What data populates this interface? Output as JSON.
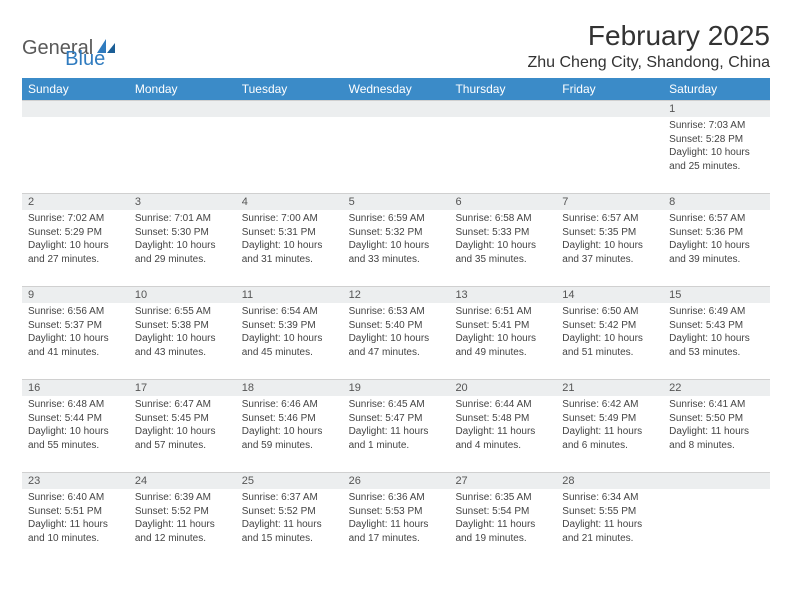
{
  "brand": {
    "part1": "General",
    "part2": "Blue"
  },
  "title": "February 2025",
  "location": "Zhu Cheng City, Shandong, China",
  "colors": {
    "header_bg": "#3b8bc8",
    "header_text": "#ffffff",
    "daybar_bg": "#eceeef",
    "daybar_border": "#d0d0d0",
    "body_text": "#444444",
    "brand_gray": "#595959",
    "brand_blue": "#2f7bbf"
  },
  "days_of_week": [
    "Sunday",
    "Monday",
    "Tuesday",
    "Wednesday",
    "Thursday",
    "Friday",
    "Saturday"
  ],
  "weeks": [
    [
      null,
      null,
      null,
      null,
      null,
      null,
      {
        "n": "1",
        "sunrise": "Sunrise: 7:03 AM",
        "sunset": "Sunset: 5:28 PM",
        "daylight": "Daylight: 10 hours and 25 minutes."
      }
    ],
    [
      {
        "n": "2",
        "sunrise": "Sunrise: 7:02 AM",
        "sunset": "Sunset: 5:29 PM",
        "daylight": "Daylight: 10 hours and 27 minutes."
      },
      {
        "n": "3",
        "sunrise": "Sunrise: 7:01 AM",
        "sunset": "Sunset: 5:30 PM",
        "daylight": "Daylight: 10 hours and 29 minutes."
      },
      {
        "n": "4",
        "sunrise": "Sunrise: 7:00 AM",
        "sunset": "Sunset: 5:31 PM",
        "daylight": "Daylight: 10 hours and 31 minutes."
      },
      {
        "n": "5",
        "sunrise": "Sunrise: 6:59 AM",
        "sunset": "Sunset: 5:32 PM",
        "daylight": "Daylight: 10 hours and 33 minutes."
      },
      {
        "n": "6",
        "sunrise": "Sunrise: 6:58 AM",
        "sunset": "Sunset: 5:33 PM",
        "daylight": "Daylight: 10 hours and 35 minutes."
      },
      {
        "n": "7",
        "sunrise": "Sunrise: 6:57 AM",
        "sunset": "Sunset: 5:35 PM",
        "daylight": "Daylight: 10 hours and 37 minutes."
      },
      {
        "n": "8",
        "sunrise": "Sunrise: 6:57 AM",
        "sunset": "Sunset: 5:36 PM",
        "daylight": "Daylight: 10 hours and 39 minutes."
      }
    ],
    [
      {
        "n": "9",
        "sunrise": "Sunrise: 6:56 AM",
        "sunset": "Sunset: 5:37 PM",
        "daylight": "Daylight: 10 hours and 41 minutes."
      },
      {
        "n": "10",
        "sunrise": "Sunrise: 6:55 AM",
        "sunset": "Sunset: 5:38 PM",
        "daylight": "Daylight: 10 hours and 43 minutes."
      },
      {
        "n": "11",
        "sunrise": "Sunrise: 6:54 AM",
        "sunset": "Sunset: 5:39 PM",
        "daylight": "Daylight: 10 hours and 45 minutes."
      },
      {
        "n": "12",
        "sunrise": "Sunrise: 6:53 AM",
        "sunset": "Sunset: 5:40 PM",
        "daylight": "Daylight: 10 hours and 47 minutes."
      },
      {
        "n": "13",
        "sunrise": "Sunrise: 6:51 AM",
        "sunset": "Sunset: 5:41 PM",
        "daylight": "Daylight: 10 hours and 49 minutes."
      },
      {
        "n": "14",
        "sunrise": "Sunrise: 6:50 AM",
        "sunset": "Sunset: 5:42 PM",
        "daylight": "Daylight: 10 hours and 51 minutes."
      },
      {
        "n": "15",
        "sunrise": "Sunrise: 6:49 AM",
        "sunset": "Sunset: 5:43 PM",
        "daylight": "Daylight: 10 hours and 53 minutes."
      }
    ],
    [
      {
        "n": "16",
        "sunrise": "Sunrise: 6:48 AM",
        "sunset": "Sunset: 5:44 PM",
        "daylight": "Daylight: 10 hours and 55 minutes."
      },
      {
        "n": "17",
        "sunrise": "Sunrise: 6:47 AM",
        "sunset": "Sunset: 5:45 PM",
        "daylight": "Daylight: 10 hours and 57 minutes."
      },
      {
        "n": "18",
        "sunrise": "Sunrise: 6:46 AM",
        "sunset": "Sunset: 5:46 PM",
        "daylight": "Daylight: 10 hours and 59 minutes."
      },
      {
        "n": "19",
        "sunrise": "Sunrise: 6:45 AM",
        "sunset": "Sunset: 5:47 PM",
        "daylight": "Daylight: 11 hours and 1 minute."
      },
      {
        "n": "20",
        "sunrise": "Sunrise: 6:44 AM",
        "sunset": "Sunset: 5:48 PM",
        "daylight": "Daylight: 11 hours and 4 minutes."
      },
      {
        "n": "21",
        "sunrise": "Sunrise: 6:42 AM",
        "sunset": "Sunset: 5:49 PM",
        "daylight": "Daylight: 11 hours and 6 minutes."
      },
      {
        "n": "22",
        "sunrise": "Sunrise: 6:41 AM",
        "sunset": "Sunset: 5:50 PM",
        "daylight": "Daylight: 11 hours and 8 minutes."
      }
    ],
    [
      {
        "n": "23",
        "sunrise": "Sunrise: 6:40 AM",
        "sunset": "Sunset: 5:51 PM",
        "daylight": "Daylight: 11 hours and 10 minutes."
      },
      {
        "n": "24",
        "sunrise": "Sunrise: 6:39 AM",
        "sunset": "Sunset: 5:52 PM",
        "daylight": "Daylight: 11 hours and 12 minutes."
      },
      {
        "n": "25",
        "sunrise": "Sunrise: 6:37 AM",
        "sunset": "Sunset: 5:52 PM",
        "daylight": "Daylight: 11 hours and 15 minutes."
      },
      {
        "n": "26",
        "sunrise": "Sunrise: 6:36 AM",
        "sunset": "Sunset: 5:53 PM",
        "daylight": "Daylight: 11 hours and 17 minutes."
      },
      {
        "n": "27",
        "sunrise": "Sunrise: 6:35 AM",
        "sunset": "Sunset: 5:54 PM",
        "daylight": "Daylight: 11 hours and 19 minutes."
      },
      {
        "n": "28",
        "sunrise": "Sunrise: 6:34 AM",
        "sunset": "Sunset: 5:55 PM",
        "daylight": "Daylight: 11 hours and 21 minutes."
      },
      null
    ]
  ]
}
